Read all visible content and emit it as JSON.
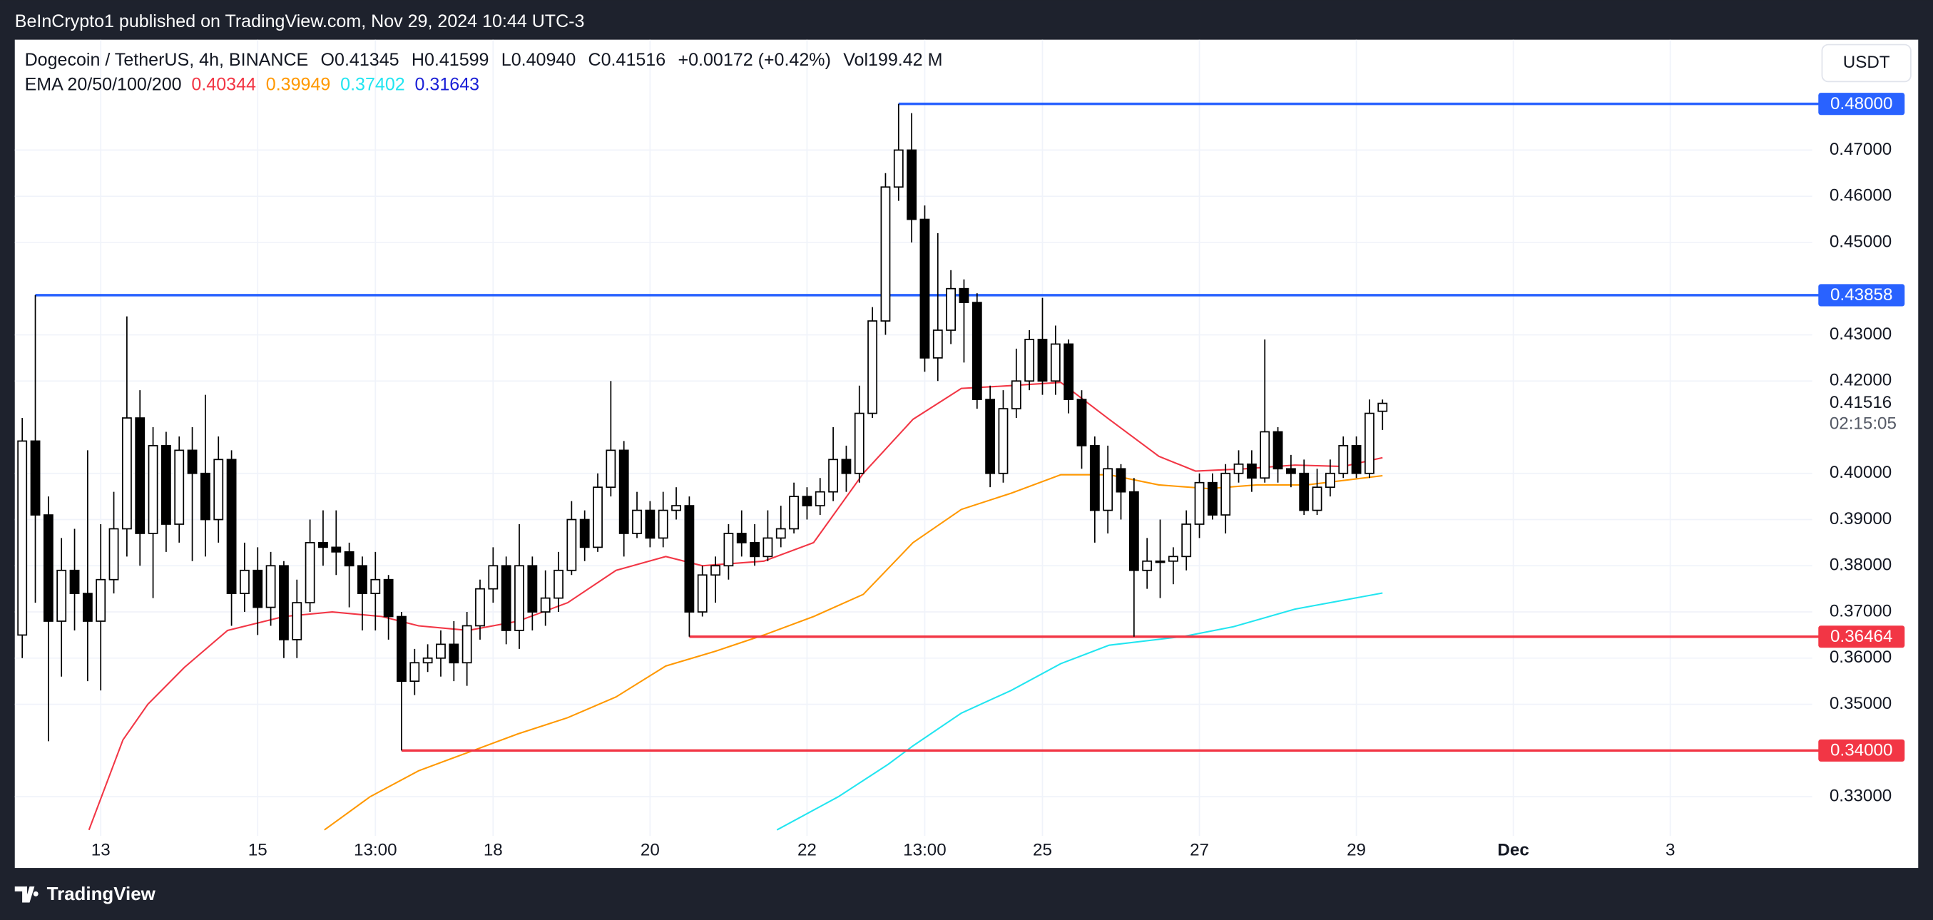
{
  "publisher": "BeInCrypto1 published on TradingView.com, Nov 29, 2024 10:44 UTC-3",
  "currency": "USDT",
  "brand": "TradingView",
  "legend": {
    "symbol": "Dogecoin / TetherUS, 4h, BINANCE",
    "ohlc": [
      "O0.41345",
      "H0.41599",
      "L0.40940",
      "C0.41516",
      "+0.00172 (+0.42%)",
      "Vol199.42 M"
    ]
  },
  "ema_legend": {
    "label": "EMA 20/50/100/200",
    "values": [
      {
        "label": "0.40344",
        "color": "#f23645"
      },
      {
        "label": "0.39949",
        "color": "#ff9800"
      },
      {
        "label": "0.37402",
        "color": "#22e5f0"
      },
      {
        "label": "0.31643",
        "color": "#1a1fd6"
      }
    ]
  },
  "chart_data": {
    "type": "candlestick",
    "up_color": "#ffffff",
    "down_color": "#000000",
    "wick_color": "#000000",
    "grid": true,
    "x": [
      0,
      1,
      2,
      3,
      4,
      5,
      6,
      7,
      8,
      9,
      10,
      11,
      12,
      13,
      14,
      15,
      16,
      17,
      18,
      19,
      20,
      21,
      22,
      23,
      24,
      25,
      26,
      27,
      28,
      29,
      30,
      31,
      32,
      33,
      34,
      35,
      36,
      37,
      38,
      39,
      40,
      41,
      42,
      43,
      44,
      45,
      46,
      47,
      48,
      49,
      50,
      51,
      52,
      53,
      54,
      55,
      56,
      57,
      58,
      59,
      60,
      61,
      62,
      63,
      64,
      65,
      66,
      67,
      68,
      69,
      70,
      71,
      72,
      73,
      74,
      75,
      76,
      77,
      78,
      79,
      80,
      81,
      82,
      83,
      84,
      85,
      86,
      87,
      88,
      89,
      90,
      91,
      92,
      93,
      94,
      95,
      96,
      97,
      98,
      99,
      100,
      101,
      102,
      103,
      104
    ],
    "open": [
      0.365,
      0.407,
      0.391,
      0.368,
      0.379,
      0.374,
      0.368,
      0.377,
      0.388,
      0.412,
      0.387,
      0.406,
      0.389,
      0.405,
      0.4,
      0.39,
      0.403,
      0.374,
      0.379,
      0.371,
      0.38,
      0.364,
      0.372,
      0.385,
      0.384,
      0.383,
      0.38,
      0.374,
      0.377,
      0.369,
      0.355,
      0.359,
      0.36,
      0.363,
      0.359,
      0.367,
      0.375,
      0.38,
      0.366,
      0.38,
      0.37,
      0.373,
      0.379,
      0.39,
      0.384,
      0.397,
      0.405,
      0.387,
      0.392,
      0.386,
      0.392,
      0.393,
      0.37,
      0.378,
      0.38,
      0.387,
      0.385,
      0.382,
      0.386,
      0.388,
      0.395,
      0.393,
      0.396,
      0.403,
      0.4,
      0.413,
      0.433,
      0.462,
      0.47,
      0.455,
      0.425,
      0.431,
      0.44,
      0.437,
      0.416,
      0.4,
      0.414,
      0.42,
      0.429,
      0.42,
      0.428,
      0.416,
      0.406,
      0.392,
      0.401,
      0.396,
      0.379,
      0.381,
      0.381,
      0.382,
      0.389,
      0.398,
      0.391,
      0.4,
      0.402,
      0.399,
      0.409,
      0.401,
      0.4,
      0.392,
      0.397,
      0.4,
      0.406,
      0.4,
      0.41345
    ],
    "high": [
      0.412,
      0.4386,
      0.395,
      0.386,
      0.388,
      0.405,
      0.389,
      0.396,
      0.434,
      0.418,
      0.41,
      0.409,
      0.408,
      0.41,
      0.417,
      0.408,
      0.405,
      0.385,
      0.384,
      0.383,
      0.381,
      0.377,
      0.39,
      0.392,
      0.392,
      0.385,
      0.382,
      0.383,
      0.378,
      0.37,
      0.362,
      0.363,
      0.366,
      0.368,
      0.37,
      0.377,
      0.384,
      0.382,
      0.389,
      0.382,
      0.379,
      0.383,
      0.394,
      0.392,
      0.4,
      0.42,
      0.407,
      0.396,
      0.394,
      0.396,
      0.397,
      0.395,
      0.38,
      0.382,
      0.389,
      0.392,
      0.389,
      0.392,
      0.393,
      0.398,
      0.397,
      0.399,
      0.41,
      0.406,
      0.419,
      0.436,
      0.465,
      0.48,
      0.478,
      0.458,
      0.452,
      0.444,
      0.442,
      0.439,
      0.419,
      0.418,
      0.427,
      0.431,
      0.438,
      0.432,
      0.429,
      0.418,
      0.408,
      0.406,
      0.402,
      0.399,
      0.386,
      0.39,
      0.384,
      0.392,
      0.4,
      0.4,
      0.402,
      0.405,
      0.405,
      0.429,
      0.41,
      0.404,
      0.403,
      0.401,
      0.403,
      0.408,
      0.408,
      0.416,
      0.41599
    ],
    "low": [
      0.36,
      0.372,
      0.342,
      0.356,
      0.366,
      0.355,
      0.353,
      0.374,
      0.382,
      0.38,
      0.373,
      0.383,
      0.385,
      0.381,
      0.382,
      0.385,
      0.367,
      0.37,
      0.365,
      0.367,
      0.36,
      0.36,
      0.37,
      0.38,
      0.378,
      0.371,
      0.366,
      0.366,
      0.364,
      0.34,
      0.352,
      0.357,
      0.356,
      0.355,
      0.354,
      0.364,
      0.372,
      0.363,
      0.362,
      0.366,
      0.367,
      0.37,
      0.378,
      0.381,
      0.383,
      0.395,
      0.382,
      0.386,
      0.384,
      0.384,
      0.39,
      0.36464,
      0.369,
      0.372,
      0.377,
      0.382,
      0.38,
      0.381,
      0.384,
      0.387,
      0.39,
      0.391,
      0.394,
      0.396,
      0.398,
      0.412,
      0.43,
      0.459,
      0.45,
      0.422,
      0.42,
      0.428,
      0.424,
      0.414,
      0.397,
      0.398,
      0.412,
      0.418,
      0.417,
      0.417,
      0.413,
      0.401,
      0.385,
      0.387,
      0.39,
      0.36464,
      0.375,
      0.373,
      0.376,
      0.379,
      0.386,
      0.39,
      0.387,
      0.398,
      0.396,
      0.398,
      0.398,
      0.397,
      0.391,
      0.391,
      0.395,
      0.399,
      0.399,
      0.399,
      0.4094
    ],
    "close": [
      0.407,
      0.391,
      0.368,
      0.379,
      0.374,
      0.368,
      0.377,
      0.388,
      0.412,
      0.387,
      0.406,
      0.389,
      0.405,
      0.4,
      0.39,
      0.403,
      0.374,
      0.379,
      0.371,
      0.38,
      0.364,
      0.372,
      0.385,
      0.384,
      0.383,
      0.38,
      0.374,
      0.377,
      0.369,
      0.355,
      0.359,
      0.36,
      0.363,
      0.359,
      0.367,
      0.375,
      0.38,
      0.366,
      0.38,
      0.37,
      0.373,
      0.379,
      0.39,
      0.384,
      0.397,
      0.405,
      0.387,
      0.392,
      0.386,
      0.392,
      0.393,
      0.37,
      0.378,
      0.38,
      0.387,
      0.385,
      0.382,
      0.386,
      0.388,
      0.395,
      0.393,
      0.396,
      0.403,
      0.4,
      0.413,
      0.433,
      0.462,
      0.47,
      0.455,
      0.425,
      0.431,
      0.44,
      0.437,
      0.416,
      0.4,
      0.414,
      0.42,
      0.429,
      0.42,
      0.428,
      0.416,
      0.406,
      0.392,
      0.401,
      0.396,
      0.379,
      0.381,
      0.381,
      0.382,
      0.389,
      0.398,
      0.391,
      0.4,
      0.402,
      0.399,
      0.409,
      0.401,
      0.4,
      0.392,
      0.397,
      0.4,
      0.406,
      0.4,
      0.413,
      0.41516
    ],
    "series": [
      {
        "color": "#f23645",
        "x": [
          5.1,
          7.7,
          9.6,
          12.4,
          15.7,
          20,
          23.7,
          27.5,
          30.3,
          34.1,
          37.9,
          41.7,
          45.4,
          49.2,
          52,
          56.7,
          60.5,
          64.3,
          68.1,
          71.8,
          75.6,
          79.4,
          83.1,
          86.9,
          89.7,
          93.5,
          97.3,
          101,
          104
        ],
        "values": [
          0.3228,
          0.3423,
          0.35,
          0.358,
          0.366,
          0.369,
          0.37,
          0.369,
          0.367,
          0.366,
          0.368,
          0.372,
          0.379,
          0.382,
          0.38,
          0.381,
          0.385,
          0.4,
          0.4117,
          0.4184,
          0.419,
          0.4197,
          0.4117,
          0.4037,
          0.4005,
          0.401,
          0.4018,
          0.4015,
          0.4034
        ]
      },
      {
        "color": "#ff9800",
        "x": [
          23.1,
          26.6,
          30.3,
          34.1,
          37.9,
          41.7,
          45.4,
          49.2,
          53,
          56.7,
          60.5,
          64.3,
          68.1,
          71.8,
          75.6,
          79.4,
          83.1,
          86.9,
          90.7,
          94.4,
          98.2,
          104
        ],
        "values": [
          0.3228,
          0.33,
          0.3356,
          0.3396,
          0.3436,
          0.3471,
          0.3516,
          0.3583,
          0.3615,
          0.365,
          0.369,
          0.3738,
          0.385,
          0.3922,
          0.3957,
          0.3997,
          0.3997,
          0.3975,
          0.3967,
          0.3975,
          0.3975,
          0.3995
        ]
      },
      {
        "color": "#22e5f0",
        "x": [
          57.7,
          62.4,
          66.2,
          68.1,
          71.8,
          75.6,
          79.4,
          83.1,
          88.8,
          92.6,
          97.3,
          104
        ],
        "values": [
          0.3228,
          0.33,
          0.337,
          0.341,
          0.3481,
          0.353,
          0.3588,
          0.3628,
          0.3647,
          0.3668,
          0.3706,
          0.3741
        ]
      }
    ],
    "levels": [
      {
        "value": 0.48,
        "label": "0.48000",
        "x": 67,
        "color": "#2962ff"
      },
      {
        "value": 0.43858,
        "label": "0.43858",
        "x": 1,
        "color": "#2962ff"
      },
      {
        "value": 0.36464,
        "label": "0.36464",
        "x": 51,
        "color": "#f23645"
      },
      {
        "value": 0.34,
        "label": "0.34000",
        "x": 29,
        "color": "#f23645"
      }
    ],
    "last": {
      "value": 0.41516,
      "label": "0.41516",
      "countdown": "02:15:05"
    },
    "xlim": [
      -0.57,
      136.85
    ],
    "ylim": [
      0.3215,
      0.4939
    ],
    "xticks": [
      {
        "value": 6,
        "label": "13"
      },
      {
        "value": 18,
        "label": "15"
      },
      {
        "value": 27,
        "label": "13:00"
      },
      {
        "value": 36,
        "label": "18"
      },
      {
        "value": 48,
        "label": "20"
      },
      {
        "value": 60,
        "label": "22"
      },
      {
        "value": 69,
        "label": "13:00"
      },
      {
        "value": 78,
        "label": "25"
      },
      {
        "value": 90,
        "label": "27"
      },
      {
        "value": 102,
        "label": "29"
      },
      {
        "value": 114,
        "label": "Dec"
      },
      {
        "value": 126,
        "label": "3"
      }
    ],
    "yticks": [
      {
        "value": 0.47,
        "label": "0.47000"
      },
      {
        "value": 0.46,
        "label": "0.46000"
      },
      {
        "value": 0.45,
        "label": "0.45000"
      },
      {
        "value": 0.43,
        "label": "0.43000"
      },
      {
        "value": 0.42,
        "label": "0.42000"
      },
      {
        "value": 0.4,
        "label": "0.40000"
      },
      {
        "value": 0.39,
        "label": "0.39000"
      },
      {
        "value": 0.38,
        "label": "0.38000"
      },
      {
        "value": 0.37,
        "label": "0.37000"
      },
      {
        "value": 0.36,
        "label": "0.36000"
      },
      {
        "value": 0.35,
        "label": "0.35000"
      },
      {
        "value": 0.33,
        "label": "0.33000"
      }
    ]
  }
}
